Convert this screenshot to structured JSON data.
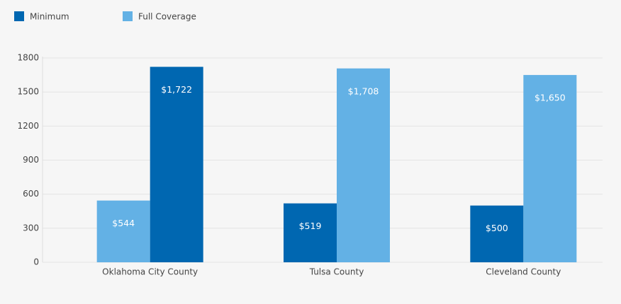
{
  "chart_data": {
    "type": "bar",
    "categories": [
      "Oklahoma City County",
      "Tulsa County",
      "Cleveland County"
    ],
    "series": [
      {
        "name": "Minimum",
        "color": "#0067b1",
        "point_colors": [
          "#63b1e5",
          "#0067b1",
          "#0067b1"
        ],
        "values": [
          544,
          519,
          500
        ],
        "value_labels": [
          "$544",
          "$519",
          "$500"
        ]
      },
      {
        "name": "Full Coverage",
        "color": "#63b1e5",
        "point_colors": [
          "#0067b1",
          "#63b1e5",
          "#63b1e5"
        ],
        "values": [
          1722,
          1708,
          1650
        ],
        "value_labels": [
          "$1,722",
          "$1,708",
          "$1,650"
        ]
      }
    ],
    "ylim": [
      0,
      1800
    ],
    "yticks": [
      0,
      300,
      600,
      900,
      1200,
      1500,
      1800
    ],
    "grid": true
  }
}
